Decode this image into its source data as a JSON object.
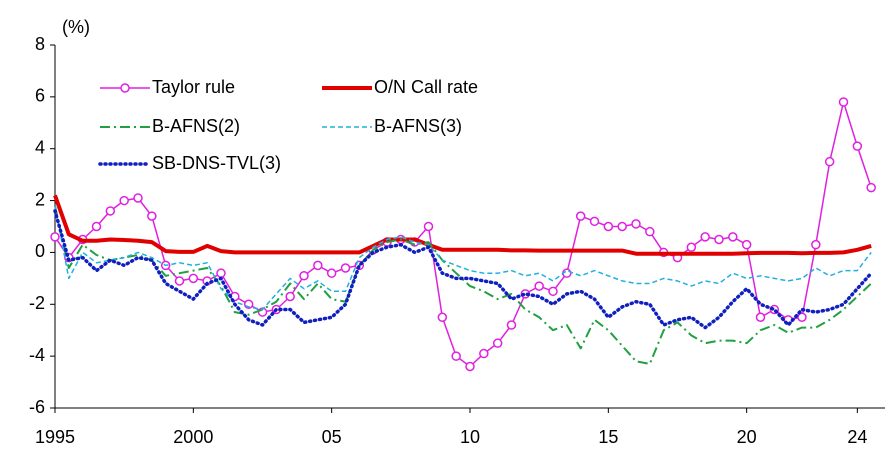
{
  "chart_data": {
    "type": "line",
    "y_unit_label": "(%)",
    "x": [
      1995,
      1995.5,
      1996,
      1996.5,
      1997,
      1997.5,
      1998,
      1998.5,
      1999,
      1999.5,
      2000,
      2000.5,
      2001,
      2001.5,
      2002,
      2002.5,
      2003,
      2003.5,
      2004,
      2004.5,
      2005,
      2005.5,
      2006,
      2006.5,
      2007,
      2007.5,
      2008,
      2008.5,
      2009,
      2009.5,
      2010,
      2010.5,
      2011,
      2011.5,
      2012,
      2012.5,
      2013,
      2013.5,
      2014,
      2014.5,
      2015,
      2015.5,
      2016,
      2016.5,
      2017,
      2017.5,
      2018,
      2018.5,
      2019,
      2019.5,
      2020,
      2020.5,
      2021,
      2021.5,
      2022,
      2022.5,
      2023,
      2023.5,
      2024,
      2024.5
    ],
    "xlim": [
      1995,
      2025
    ],
    "xticks": [
      1995,
      2000,
      {
        "value": 2005,
        "label": "05"
      },
      {
        "value": 2010,
        "label": "10"
      },
      {
        "value": 2015,
        "label": "15"
      },
      {
        "value": 2020,
        "label": "20"
      },
      {
        "value": 2024,
        "label": "24"
      }
    ],
    "ylim": [
      -6,
      8
    ],
    "yticks": [
      -6,
      -4,
      -2,
      0,
      2,
      4,
      6,
      8
    ],
    "legend": "upper left",
    "series": [
      {
        "name": "Taylor rule",
        "color": "#e020e0",
        "style": "solid-marker",
        "values": [
          0.6,
          -0.2,
          0.5,
          1.0,
          1.6,
          2.0,
          2.1,
          1.4,
          -0.5,
          -1.1,
          -1.0,
          -1.1,
          -0.8,
          -1.7,
          -2.0,
          -2.3,
          -2.2,
          -1.7,
          -0.9,
          -0.5,
          -0.8,
          -0.6,
          -0.5,
          0.1,
          0.4,
          0.5,
          0.4,
          1.0,
          -2.5,
          -4.0,
          -4.4,
          -3.9,
          -3.5,
          -2.8,
          -1.6,
          -1.3,
          -1.5,
          -0.8,
          1.4,
          1.2,
          1.0,
          1.0,
          1.1,
          0.8,
          0.0,
          -0.2,
          0.2,
          0.6,
          0.5,
          0.6,
          0.3,
          -2.5,
          -2.2,
          -2.6,
          -2.5,
          0.3,
          3.5,
          5.8,
          4.1,
          2.5
        ]
      },
      {
        "name": "O/N Call rate",
        "color": "#e00000",
        "style": "thick",
        "values": [
          2.2,
          0.7,
          0.45,
          0.45,
          0.5,
          0.48,
          0.45,
          0.4,
          0.05,
          0.02,
          0.02,
          0.25,
          0.05,
          0,
          0,
          0,
          0,
          0,
          0,
          0,
          0,
          0,
          0,
          0.25,
          0.5,
          0.5,
          0.5,
          0.3,
          0.1,
          0.1,
          0.1,
          0.1,
          0.1,
          0.08,
          0.08,
          0.07,
          0.07,
          0.07,
          0.07,
          0.07,
          0.07,
          0.07,
          -0.05,
          -0.05,
          -0.05,
          -0.05,
          -0.05,
          -0.05,
          -0.05,
          -0.05,
          -0.03,
          -0.02,
          -0.02,
          -0.02,
          -0.03,
          -0.02,
          -0.02,
          0.0,
          0.1,
          0.25
        ]
      },
      {
        "name": "B-AFNS(2)",
        "color": "#20a040",
        "style": "dashdot",
        "values": [
          1.8,
          -0.6,
          0.3,
          -0.1,
          -0.3,
          -0.2,
          -0.1,
          -0.3,
          -0.9,
          -0.8,
          -0.7,
          -0.6,
          -1.3,
          -2.3,
          -2.4,
          -2.2,
          -1.9,
          -1.2,
          -1.8,
          -1.2,
          -1.8,
          -1.9,
          -0.5,
          0.1,
          0.4,
          0.5,
          0.3,
          0.4,
          -0.3,
          -0.8,
          -1.3,
          -1.5,
          -1.8,
          -1.6,
          -2.2,
          -2.5,
          -3.0,
          -2.8,
          -3.7,
          -2.6,
          -3.0,
          -3.6,
          -4.2,
          -4.3,
          -3.0,
          -2.7,
          -3.2,
          -3.5,
          -3.4,
          -3.4,
          -3.5,
          -3.0,
          -2.8,
          -3.1,
          -2.9,
          -2.9,
          -2.6,
          -2.2,
          -1.7,
          -1.2
        ]
      },
      {
        "name": "B-AFNS(3)",
        "color": "#20b0e0",
        "style": "dashed",
        "values": [
          1.8,
          -1.0,
          0.0,
          -0.4,
          -0.3,
          -0.2,
          0.0,
          -0.2,
          -0.5,
          -0.4,
          -0.5,
          -0.4,
          -1.4,
          -1.9,
          -2.1,
          -2.2,
          -1.6,
          -1.0,
          -1.4,
          -1.1,
          -1.5,
          -1.5,
          -0.2,
          0.2,
          0.5,
          0.6,
          0.4,
          0.3,
          -0.3,
          -0.5,
          -0.7,
          -0.8,
          -0.8,
          -0.7,
          -0.9,
          -0.8,
          -1.1,
          -0.7,
          -0.9,
          -0.7,
          -0.9,
          -1.1,
          -1.2,
          -1.2,
          -1.0,
          -1.1,
          -1.3,
          -1.1,
          -1.2,
          -0.8,
          -1.0,
          -0.9,
          -1.0,
          -1.1,
          -1.0,
          -0.6,
          -0.9,
          -0.7,
          -0.7,
          0.0
        ]
      },
      {
        "name": "SB-DNS-TVL(3)",
        "color": "#1020c0",
        "style": "dotted",
        "values": [
          1.6,
          -0.3,
          -0.2,
          -0.7,
          -0.3,
          -0.5,
          -0.2,
          -0.3,
          -1.2,
          -1.5,
          -1.8,
          -1.2,
          -1.0,
          -2.0,
          -2.6,
          -2.8,
          -2.2,
          -2.2,
          -2.7,
          -2.6,
          -2.5,
          -2.0,
          -0.5,
          0.0,
          0.2,
          0.3,
          0.0,
          0.2,
          -0.8,
          -1.0,
          -1.0,
          -1.1,
          -1.2,
          -1.8,
          -1.6,
          -1.7,
          -2.0,
          -1.6,
          -1.5,
          -1.8,
          -2.5,
          -2.1,
          -1.9,
          -2.0,
          -2.8,
          -2.6,
          -2.5,
          -2.9,
          -2.5,
          -1.9,
          -1.4,
          -2.0,
          -2.2,
          -2.8,
          -2.2,
          -2.3,
          -2.2,
          -2.0,
          -1.4,
          -0.8
        ]
      }
    ]
  }
}
